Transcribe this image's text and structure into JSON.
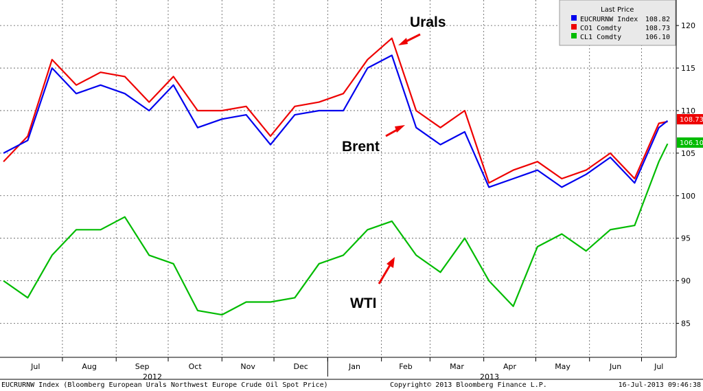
{
  "chart_data": {
    "type": "line",
    "title": "",
    "xlabel": "",
    "ylabel": "",
    "ylim": [
      81,
      123
    ],
    "y_ticks": [
      "85",
      "90",
      "95",
      "100",
      "105",
      "110",
      "115",
      "120"
    ],
    "x_ticks": [
      "Jul",
      "Aug",
      "Sep",
      "Oct",
      "Nov",
      "Dec",
      "Jan",
      "Feb",
      "Mar",
      "Apr",
      "May",
      "Jun",
      "Jul"
    ],
    "year_labels": [
      "2012",
      "2013"
    ],
    "grid": true,
    "legend_position": "top-right",
    "legend_title": "Last Price",
    "x_dates": [
      "2012-06-28",
      "2012-07-12",
      "2012-07-26",
      "2012-08-09",
      "2012-08-23",
      "2012-09-06",
      "2012-09-20",
      "2012-10-04",
      "2012-10-18",
      "2012-11-01",
      "2012-11-15",
      "2012-11-29",
      "2012-12-13",
      "2012-12-27",
      "2013-01-10",
      "2013-01-24",
      "2013-02-07",
      "2013-02-21",
      "2013-03-07",
      "2013-03-21",
      "2013-04-04",
      "2013-04-18",
      "2013-05-02",
      "2013-05-16",
      "2013-05-30",
      "2013-06-13",
      "2013-06-27",
      "2013-07-11",
      "2013-07-16"
    ],
    "series": [
      {
        "name": "EUCRURNW Index",
        "last": "108.82",
        "color": "#0000ee",
        "values": [
          105,
          106.5,
          115,
          112,
          113,
          112,
          110,
          113,
          108,
          109,
          109.5,
          106,
          109.5,
          110,
          110,
          115,
          116.5,
          108,
          106,
          107.5,
          101,
          102,
          103,
          101,
          102.5,
          104.5,
          101.5,
          108,
          108.8
        ]
      },
      {
        "name": "CO1 Comdty",
        "last": "108.73",
        "color": "#ee0000",
        "values": [
          104,
          107,
          116,
          113,
          114.5,
          114,
          111,
          114,
          110,
          110,
          110.5,
          107,
          110.5,
          111,
          112,
          116,
          118.5,
          110,
          108,
          110,
          101.5,
          103,
          104,
          102,
          103,
          105,
          102,
          108.5,
          108.7
        ]
      },
      {
        "name": "CL1 Comdty",
        "last": "106.10",
        "color": "#00bb00",
        "values": [
          90,
          88,
          93,
          96,
          96,
          97.5,
          93,
          92,
          86.5,
          86,
          87.5,
          87.5,
          88,
          92,
          93,
          96,
          97,
          93,
          91,
          95,
          90,
          87,
          94,
          95.5,
          93.5,
          96,
          96.5,
          104,
          106.1
        ]
      }
    ],
    "annotations": [
      "Urals",
      "Brent",
      "WTI"
    ]
  },
  "footer": {
    "left": "EUCRURNW Index (Bloomberg European Urals Northwest Europe Crude Oil Spot Price)",
    "center": "Copyright© 2013 Bloomberg Finance L.P.",
    "right": "16-Jul-2013 09:46:38"
  }
}
